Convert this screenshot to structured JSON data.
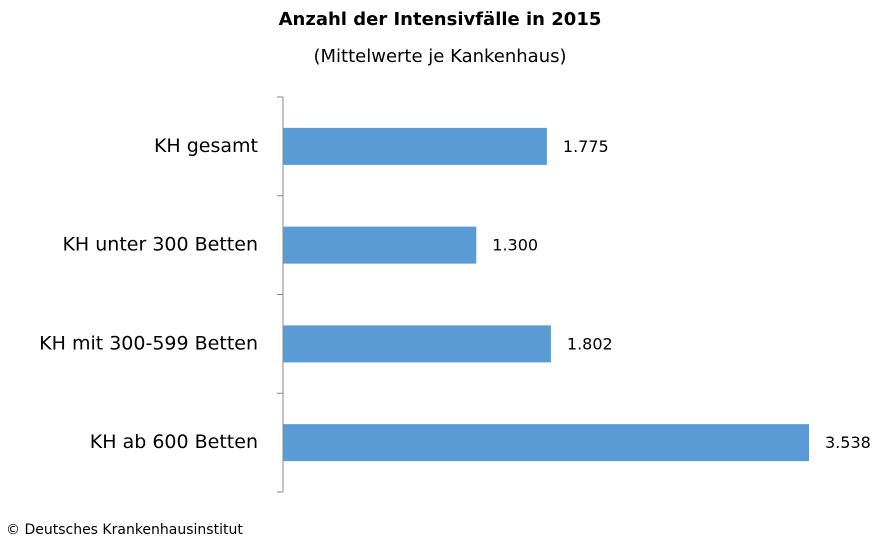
{
  "chart_data": {
    "type": "bar",
    "orientation": "horizontal",
    "title": "Anzahl der Intensivfälle in 2015",
    "subtitle": "(Mittelwerte je Kankenhaus)",
    "categories": [
      "KH gesamt",
      "KH unter 300 Betten",
      "KH mit 300-599 Betten",
      "KH ab 600 Betten"
    ],
    "values": [
      1775,
      1300,
      1802,
      3538
    ],
    "value_labels": [
      "1.775",
      "1.300",
      "1.802",
      "3.538"
    ],
    "color": "#5b9bd5",
    "source": "© Deutsches Krankenhausinstitut"
  }
}
